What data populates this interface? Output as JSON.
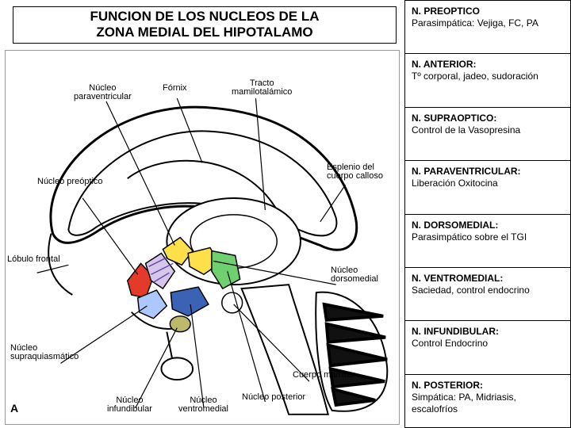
{
  "title": {
    "line1": "FUNCION DE LOS NUCLEOS DE LA",
    "line2": "ZONA MEDIAL DEL HIPOTALAMO"
  },
  "anatomy_labels": {
    "nucleo_paraventricular": "Núcleo\nparaventricular",
    "fornix": "Fórnix",
    "tracto_mamilotalamico": "Tracto\nmamilotalámico",
    "nucleo_preoptico": "Núcleo preóptico",
    "esplenio": "Esplenio del\ncuerpo calloso",
    "lobulo_frontal": "Lóbulo frontal",
    "nucleo_dorsomedial": "Núcleo\ndorsomedial",
    "nucleo_supraquiasmatico": "Núcleo\nsupraquiasmático",
    "nucleo_infundibular": "Núcleo\ninfundibular",
    "nucleo_ventromedial": "Núcleo\nventromedial",
    "nucleo_posterior": "Núcleo posterior",
    "cuerpo_mamilar": "Cuerpo mamilar",
    "corner_letter": "A"
  },
  "nuclei": [
    {
      "heading": "N. PREOPTICO",
      "body": "Parasimpática: Vejiga, FC, PA"
    },
    {
      "heading": "N. ANTERIOR:",
      "body": "Tº corporal, jadeo, sudoración"
    },
    {
      "heading": "N. SUPRAOPTICO:",
      "body": "Control de la Vasopresina"
    },
    {
      "heading": "N. PARAVENTRICULAR:",
      "body": "Liberación Oxitocina"
    },
    {
      "heading": "N. DORSOMEDIAL:",
      "body": "Parasimpático sobre el TGI"
    },
    {
      "heading": "N. VENTROMEDIAL:",
      "body": "Saciedad, control endocrino"
    },
    {
      "heading": "N. INFUNDIBULAR:",
      "body": "Control Endocrino"
    },
    {
      "heading": "N. POSTERIOR:",
      "body": "Simpática: PA, Midriasis, escalofríos"
    }
  ],
  "nuclei_colors": {
    "preoptico": "#e43a2a",
    "anterior": "#b9a0d8",
    "supraoptico": "#acc8ff",
    "paraventricular": "#ffe04a",
    "dorsomedial": "#ffe04a",
    "ventromedial": "#3a62b5",
    "infundibular": "#bdb96a",
    "posterior": "#6fd06f"
  },
  "diagram_style": {
    "outline_color": "#000000",
    "background": "#ffffff",
    "leader_color": "#000000",
    "cerebellum_fill": "#1a1a1a"
  }
}
